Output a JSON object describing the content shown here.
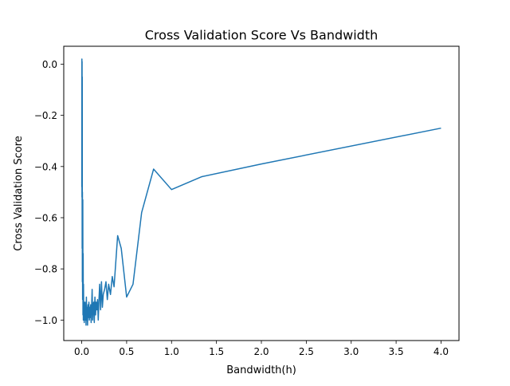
{
  "chart_data": {
    "type": "line",
    "title": "Cross Validation Score Vs Bandwidth",
    "xlabel": "Bandwidth(h)",
    "ylabel": "Cross Validation Score",
    "xlim": [
      -0.2,
      4.2
    ],
    "ylim": [
      -1.08,
      0.07
    ],
    "x_ticks": [
      0.0,
      0.5,
      1.0,
      1.5,
      2.0,
      2.5,
      3.0,
      3.5,
      4.0
    ],
    "x_tick_labels": [
      "0.0",
      "0.5",
      "1.0",
      "1.5",
      "2.0",
      "2.5",
      "3.0",
      "3.5",
      "4.0"
    ],
    "y_ticks": [
      0.0,
      -0.2,
      -0.4,
      -0.6,
      -0.8,
      -1.0
    ],
    "y_tick_labels": [
      "0.0",
      "−0.2",
      "−0.4",
      "−0.6",
      "−0.8",
      "−1.0"
    ],
    "grid": false,
    "series": [
      {
        "color": "#1f77b4",
        "x": [
          0.001,
          0.002,
          0.003,
          0.004,
          0.005,
          0.006,
          0.007,
          0.008,
          0.009,
          0.01,
          0.012,
          0.014,
          0.016,
          0.018,
          0.02,
          0.022,
          0.025,
          0.028,
          0.031,
          0.034,
          0.037,
          0.04,
          0.044,
          0.048,
          0.052,
          0.056,
          0.06,
          0.065,
          0.07,
          0.075,
          0.08,
          0.085,
          0.09,
          0.095,
          0.1,
          0.105,
          0.11,
          0.116,
          0.122,
          0.128,
          0.134,
          0.14,
          0.147,
          0.154,
          0.161,
          0.168,
          0.176,
          0.184,
          0.192,
          0.2,
          0.21,
          0.22,
          0.23,
          0.24,
          0.255,
          0.27,
          0.285,
          0.3,
          0.32,
          0.34,
          0.36,
          0.4,
          0.44,
          0.5,
          0.571,
          0.667,
          0.8,
          1.0,
          1.333,
          2.0,
          4.0
        ],
        "y": [
          -0.48,
          0.02,
          -0.52,
          0.01,
          -0.72,
          -0.05,
          -0.85,
          -0.5,
          -0.75,
          -0.92,
          -0.53,
          -0.98,
          -0.74,
          -1.0,
          -0.86,
          -0.97,
          -0.93,
          -1.01,
          -0.95,
          -0.98,
          -0.93,
          -1.0,
          -0.96,
          -1.02,
          -0.91,
          -1.0,
          -0.95,
          -1.02,
          -0.94,
          -0.99,
          -0.93,
          -1.0,
          -0.95,
          -0.99,
          -0.94,
          -1.01,
          -0.95,
          -0.88,
          -1.0,
          -0.94,
          -0.93,
          -1.01,
          -0.91,
          -0.98,
          -0.93,
          -0.96,
          -0.92,
          -1.0,
          -0.92,
          -0.86,
          -0.96,
          -0.85,
          -0.95,
          -0.9,
          -0.88,
          -0.85,
          -0.92,
          -0.86,
          -0.9,
          -0.83,
          -0.87,
          -0.67,
          -0.72,
          -0.91,
          -0.86,
          -0.58,
          -0.41,
          -0.49,
          -0.44,
          -0.39,
          -0.25
        ]
      }
    ]
  }
}
